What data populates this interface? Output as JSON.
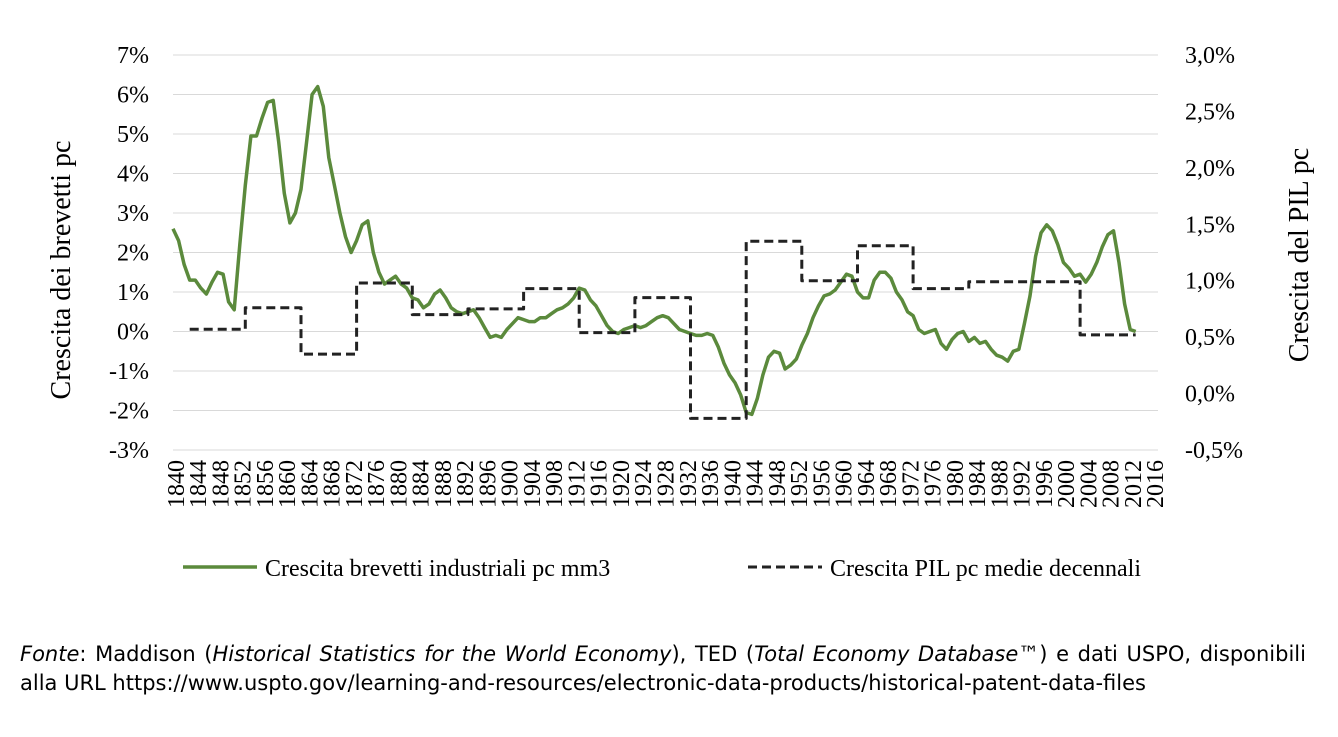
{
  "chart_data": {
    "type": "line",
    "y_left_label": "Crescita dei brevetti pc",
    "y_right_label": "Crescita del PIL pc",
    "y_left_ticks": [
      "7%",
      "6%",
      "5%",
      "4%",
      "3%",
      "2%",
      "1%",
      "0%",
      "-1%",
      "-2%",
      "-3%"
    ],
    "y_left_lim": [
      -3,
      7
    ],
    "y_right_ticks": [
      "3,0%",
      "2,5%",
      "2,0%",
      "1,5%",
      "1,0%",
      "0,5%",
      "0,0%",
      "-0,5%"
    ],
    "y_right_lim": [
      -0.5,
      3.0
    ],
    "x_lim": [
      1840,
      2017
    ],
    "x_tick_labels": [
      "1840",
      "1844",
      "1848",
      "1852",
      "1856",
      "1860",
      "1864",
      "1868",
      "1872",
      "1876",
      "1880",
      "1884",
      "1888",
      "1892",
      "1896",
      "1900",
      "1904",
      "1908",
      "1912",
      "1916",
      "1920",
      "1924",
      "1928",
      "1932",
      "1936",
      "1940",
      "1944",
      "1948",
      "1952",
      "1956",
      "1960",
      "1964",
      "1968",
      "1972",
      "1976",
      "1980",
      "1984",
      "1988",
      "1992",
      "1996",
      "2000",
      "2004",
      "2008",
      "2012",
      "2016"
    ],
    "grid": true,
    "legend_position": "bottom",
    "series": [
      {
        "name": "Crescita brevetti industriali  pc mm3",
        "axis": "left",
        "color": "#5b8a3c",
        "style": "solid",
        "points": [
          [
            1840,
            2.6
          ],
          [
            1841,
            2.3
          ],
          [
            1842,
            1.7
          ],
          [
            1843,
            1.3
          ],
          [
            1844,
            1.3
          ],
          [
            1845,
            1.1
          ],
          [
            1846,
            0.95
          ],
          [
            1847,
            1.25
          ],
          [
            1848,
            1.5
          ],
          [
            1849,
            1.45
          ],
          [
            1850,
            0.75
          ],
          [
            1851,
            0.55
          ],
          [
            1852,
            2.2
          ],
          [
            1853,
            3.7
          ],
          [
            1854,
            4.95
          ],
          [
            1855,
            4.95
          ],
          [
            1856,
            5.4
          ],
          [
            1857,
            5.8
          ],
          [
            1858,
            5.85
          ],
          [
            1859,
            4.8
          ],
          [
            1860,
            3.5
          ],
          [
            1861,
            2.75
          ],
          [
            1862,
            3.0
          ],
          [
            1863,
            3.6
          ],
          [
            1864,
            4.8
          ],
          [
            1865,
            6.0
          ],
          [
            1866,
            6.2
          ],
          [
            1867,
            5.7
          ],
          [
            1868,
            4.4
          ],
          [
            1869,
            3.7
          ],
          [
            1870,
            3.0
          ],
          [
            1871,
            2.4
          ],
          [
            1872,
            2.0
          ],
          [
            1873,
            2.3
          ],
          [
            1874,
            2.7
          ],
          [
            1875,
            2.8
          ],
          [
            1876,
            2.0
          ],
          [
            1877,
            1.5
          ],
          [
            1878,
            1.2
          ],
          [
            1879,
            1.3
          ],
          [
            1880,
            1.4
          ],
          [
            1881,
            1.2
          ],
          [
            1882,
            1.1
          ],
          [
            1883,
            0.85
          ],
          [
            1884,
            0.8
          ],
          [
            1885,
            0.6
          ],
          [
            1886,
            0.7
          ],
          [
            1887,
            0.95
          ],
          [
            1888,
            1.05
          ],
          [
            1889,
            0.85
          ],
          [
            1890,
            0.6
          ],
          [
            1891,
            0.5
          ],
          [
            1892,
            0.45
          ],
          [
            1893,
            0.5
          ],
          [
            1894,
            0.55
          ],
          [
            1895,
            0.35
          ],
          [
            1896,
            0.1
          ],
          [
            1897,
            -0.15
          ],
          [
            1898,
            -0.1
          ],
          [
            1899,
            -0.15
          ],
          [
            1900,
            0.05
          ],
          [
            1901,
            0.2
          ],
          [
            1902,
            0.35
          ],
          [
            1903,
            0.3
          ],
          [
            1904,
            0.25
          ],
          [
            1905,
            0.25
          ],
          [
            1906,
            0.35
          ],
          [
            1907,
            0.35
          ],
          [
            1908,
            0.45
          ],
          [
            1909,
            0.55
          ],
          [
            1910,
            0.6
          ],
          [
            1911,
            0.7
          ],
          [
            1912,
            0.85
          ],
          [
            1913,
            1.1
          ],
          [
            1914,
            1.05
          ],
          [
            1915,
            0.8
          ],
          [
            1916,
            0.65
          ],
          [
            1917,
            0.4
          ],
          [
            1918,
            0.15
          ],
          [
            1919,
            0.0
          ],
          [
            1920,
            -0.05
          ],
          [
            1921,
            0.05
          ],
          [
            1922,
            0.1
          ],
          [
            1923,
            0.15
          ],
          [
            1924,
            0.1
          ],
          [
            1925,
            0.15
          ],
          [
            1926,
            0.25
          ],
          [
            1927,
            0.35
          ],
          [
            1928,
            0.4
          ],
          [
            1929,
            0.35
          ],
          [
            1930,
            0.2
          ],
          [
            1931,
            0.05
          ],
          [
            1932,
            0.0
          ],
          [
            1933,
            -0.05
          ],
          [
            1934,
            -0.1
          ],
          [
            1935,
            -0.1
          ],
          [
            1936,
            -0.05
          ],
          [
            1937,
            -0.1
          ],
          [
            1938,
            -0.4
          ],
          [
            1939,
            -0.8
          ],
          [
            1940,
            -1.1
          ],
          [
            1941,
            -1.3
          ],
          [
            1942,
            -1.6
          ],
          [
            1943,
            -2.05
          ],
          [
            1944,
            -2.1
          ],
          [
            1945,
            -1.7
          ],
          [
            1946,
            -1.1
          ],
          [
            1947,
            -0.65
          ],
          [
            1948,
            -0.5
          ],
          [
            1949,
            -0.55
          ],
          [
            1950,
            -0.95
          ],
          [
            1951,
            -0.85
          ],
          [
            1952,
            -0.7
          ],
          [
            1953,
            -0.35
          ],
          [
            1954,
            -0.05
          ],
          [
            1955,
            0.35
          ],
          [
            1956,
            0.65
          ],
          [
            1957,
            0.9
          ],
          [
            1958,
            0.95
          ],
          [
            1959,
            1.05
          ],
          [
            1960,
            1.25
          ],
          [
            1961,
            1.45
          ],
          [
            1962,
            1.4
          ],
          [
            1963,
            1.0
          ],
          [
            1964,
            0.85
          ],
          [
            1965,
            0.85
          ],
          [
            1966,
            1.3
          ],
          [
            1967,
            1.5
          ],
          [
            1968,
            1.5
          ],
          [
            1969,
            1.35
          ],
          [
            1970,
            1.0
          ],
          [
            1971,
            0.8
          ],
          [
            1972,
            0.5
          ],
          [
            1973,
            0.4
          ],
          [
            1974,
            0.05
          ],
          [
            1975,
            -0.05
          ],
          [
            1976,
            0.0
          ],
          [
            1977,
            0.05
          ],
          [
            1978,
            -0.3
          ],
          [
            1979,
            -0.45
          ],
          [
            1980,
            -0.2
          ],
          [
            1981,
            -0.05
          ],
          [
            1982,
            0.0
          ],
          [
            1983,
            -0.25
          ],
          [
            1984,
            -0.15
          ],
          [
            1985,
            -0.3
          ],
          [
            1986,
            -0.25
          ],
          [
            1987,
            -0.45
          ],
          [
            1988,
            -0.6
          ],
          [
            1989,
            -0.65
          ],
          [
            1990,
            -0.75
          ],
          [
            1991,
            -0.5
          ],
          [
            1992,
            -0.45
          ],
          [
            1993,
            0.2
          ],
          [
            1994,
            0.9
          ],
          [
            1995,
            1.9
          ],
          [
            1996,
            2.5
          ],
          [
            1997,
            2.7
          ],
          [
            1998,
            2.55
          ],
          [
            1999,
            2.2
          ],
          [
            2000,
            1.75
          ],
          [
            2001,
            1.6
          ],
          [
            2002,
            1.4
          ],
          [
            2003,
            1.45
          ],
          [
            2004,
            1.25
          ],
          [
            2005,
            1.45
          ],
          [
            2006,
            1.75
          ],
          [
            2007,
            2.15
          ],
          [
            2008,
            2.45
          ],
          [
            2009,
            2.55
          ],
          [
            2010,
            1.75
          ],
          [
            2011,
            0.7
          ],
          [
            2012,
            0.05
          ],
          [
            2013,
            0.0
          ]
        ]
      },
      {
        "name": "Crescita PIL pc medie decennali",
        "axis": "right",
        "color": "#222222",
        "style": "dashed",
        "points": [
          [
            1843,
            0.57
          ],
          [
            1853,
            0.57
          ],
          [
            1853,
            0.76
          ],
          [
            1863,
            0.76
          ],
          [
            1863,
            0.35
          ],
          [
            1873,
            0.35
          ],
          [
            1873,
            0.98
          ],
          [
            1883,
            0.98
          ],
          [
            1883,
            0.7
          ],
          [
            1893,
            0.7
          ],
          [
            1893,
            0.75
          ],
          [
            1903,
            0.75
          ],
          [
            1903,
            0.93
          ],
          [
            1913,
            0.93
          ],
          [
            1913,
            0.54
          ],
          [
            1923,
            0.54
          ],
          [
            1923,
            0.85
          ],
          [
            1933,
            0.85
          ],
          [
            1933,
            -0.22
          ],
          [
            1943,
            -0.22
          ],
          [
            1943,
            1.35
          ],
          [
            1953,
            1.35
          ],
          [
            1953,
            1.0
          ],
          [
            1963,
            1.0
          ],
          [
            1963,
            1.31
          ],
          [
            1973,
            1.31
          ],
          [
            1973,
            0.93
          ],
          [
            1983,
            0.93
          ],
          [
            1983,
            0.99
          ],
          [
            1993,
            0.99
          ],
          [
            1993,
            0.99
          ],
          [
            2003,
            0.99
          ],
          [
            2003,
            0.52
          ],
          [
            2013,
            0.52
          ]
        ]
      }
    ]
  },
  "caption": {
    "source_label": "Fonte",
    "text_1": ": Maddison (",
    "title_1": "Historical Statistics for the World Economy",
    "text_2": "), TED (",
    "title_2": "Total Economy Database™",
    "text_3": ") e dati USPO, disponibili alla URL https://www.uspto.gov/learning-and-resources/electronic-data-products/historical-patent-data-files"
  }
}
